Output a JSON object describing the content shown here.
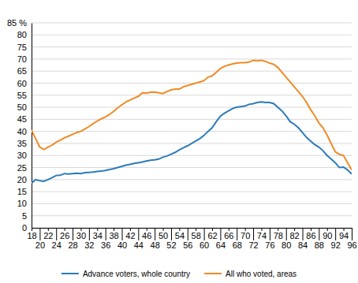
{
  "chart_data": {
    "type": "line",
    "x": [
      18,
      19,
      20,
      21,
      22,
      23,
      24,
      25,
      26,
      27,
      28,
      29,
      30,
      31,
      32,
      33,
      34,
      35,
      36,
      37,
      38,
      39,
      40,
      41,
      42,
      43,
      44,
      45,
      46,
      47,
      48,
      49,
      50,
      51,
      52,
      53,
      54,
      55,
      56,
      57,
      58,
      59,
      60,
      61,
      62,
      63,
      64,
      65,
      66,
      67,
      68,
      69,
      70,
      71,
      72,
      73,
      74,
      75,
      76,
      77,
      78,
      79,
      80,
      81,
      82,
      83,
      84,
      85,
      86,
      87,
      88,
      89,
      90,
      91,
      92,
      93,
      94,
      95,
      96
    ],
    "series": [
      {
        "name": "Advance voters, whole country",
        "color": "#2b7bba",
        "values": [
          18.5,
          20,
          19.5,
          19.3,
          20,
          20.8,
          21.7,
          21.8,
          22.5,
          22.3,
          22.5,
          22.6,
          22.5,
          22.9,
          23,
          23.1,
          23.4,
          23.5,
          23.8,
          24.2,
          24.5,
          25,
          25.5,
          26,
          26.3,
          26.7,
          27,
          27.3,
          27.7,
          28,
          28.2,
          28.5,
          29.3,
          29.8,
          30.5,
          31.3,
          32.3,
          33.2,
          34,
          35,
          36,
          37,
          38.3,
          40,
          41.5,
          44,
          46.3,
          47.5,
          48.5,
          49.5,
          50,
          50.3,
          50.5,
          51.2,
          51.5,
          52,
          52.2,
          52,
          52,
          51.5,
          50,
          48.5,
          46.5,
          44,
          43,
          41.5,
          39.5,
          37.5,
          36,
          34.5,
          33.5,
          32,
          30,
          28.5,
          27,
          25,
          25.2,
          24,
          22.3
        ]
      },
      {
        "name": "All who voted, areas",
        "color": "#f08a24",
        "values": [
          40.5,
          37,
          33.5,
          32.5,
          33.5,
          34.3,
          35.5,
          36.3,
          37.3,
          38,
          38.8,
          39.5,
          40,
          41,
          42,
          43.2,
          44.3,
          45.2,
          46,
          47,
          48.3,
          49.8,
          51,
          52.2,
          53,
          53.8,
          54.5,
          56,
          55.8,
          56.2,
          56.3,
          56,
          55.7,
          56.5,
          57.2,
          57.5,
          57.5,
          58.5,
          59,
          59.5,
          60,
          60.5,
          61,
          62.5,
          63,
          64.5,
          66,
          67,
          67.5,
          68,
          68.3,
          68.5,
          68.5,
          68.7,
          69.5,
          69.3,
          69.5,
          69,
          68.3,
          67.8,
          66.5,
          64.5,
          62.5,
          60.5,
          58.5,
          56.5,
          54.5,
          52,
          49,
          46.5,
          43.5,
          41.5,
          38.5,
          35,
          31.5,
          30.5,
          30,
          27,
          24
        ]
      }
    ],
    "xlim": [
      18,
      96
    ],
    "xticks": [
      18,
      20,
      22,
      24,
      26,
      28,
      30,
      32,
      34,
      36,
      38,
      40,
      42,
      44,
      46,
      48,
      50,
      52,
      54,
      56,
      58,
      60,
      62,
      64,
      66,
      68,
      70,
      72,
      74,
      76,
      78,
      80,
      82,
      84,
      86,
      88,
      90,
      92,
      94,
      96
    ],
    "ylim": [
      0,
      85
    ],
    "yticks": [
      0,
      5,
      10,
      15,
      20,
      25,
      30,
      35,
      40,
      45,
      50,
      55,
      60,
      65,
      70,
      75,
      80,
      {
        "value": 85,
        "label": "85 %"
      }
    ],
    "grid": true,
    "legend": "bottom"
  }
}
